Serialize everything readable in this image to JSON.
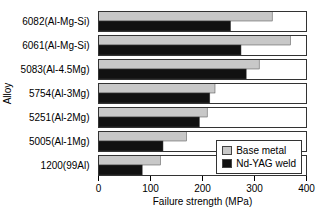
{
  "chart_data": {
    "type": "bar",
    "orientation": "horizontal",
    "categories": [
      "1200(99Al)",
      "5005(Al-1Mg)",
      "5251(Al-2Mg)",
      "5754(Al-3Mg)",
      "5083(Al-4.5Mg)",
      "6061(Al-Mg-Si)",
      "6082(Al-Mg-Si)"
    ],
    "series": [
      {
        "name": "Base metal",
        "color": "#c8c8c8",
        "values": [
          120,
          170,
          210,
          225,
          310,
          370,
          335
        ]
      },
      {
        "name": "Nd-YAG weld",
        "color": "#111111",
        "values": [
          85,
          125,
          195,
          215,
          285,
          275,
          255
        ]
      }
    ],
    "xlabel": "Failure strength (MPa)",
    "ylabel": "Alloy",
    "xlim": [
      0,
      400
    ],
    "xticks": [
      0,
      100,
      200,
      300,
      400
    ],
    "legend": "lower right",
    "grid": false
  }
}
